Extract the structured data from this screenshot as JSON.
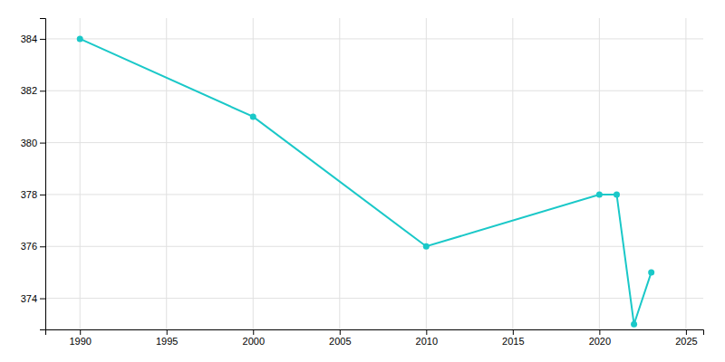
{
  "chart_data": {
    "type": "line",
    "x": [
      1990,
      2000,
      2010,
      2020,
      2021,
      2022,
      2023
    ],
    "values": [
      384,
      381,
      376,
      378,
      378,
      373,
      375
    ],
    "color": "#1AC8C8",
    "marker": "circle",
    "xlim": [
      1988,
      2026
    ],
    "ylim": [
      372.8,
      384.8
    ],
    "xticks": [
      1990,
      1995,
      2000,
      2005,
      2010,
      2015,
      2020,
      2025
    ],
    "yticks": [
      374,
      376,
      378,
      380,
      382,
      384
    ],
    "grid": true
  }
}
